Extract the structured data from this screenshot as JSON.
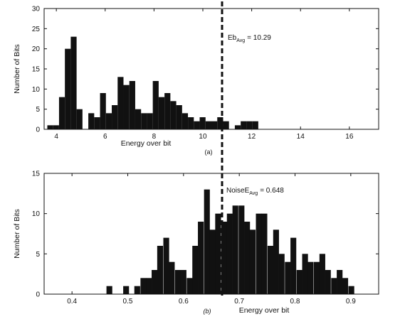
{
  "colors": {
    "bar": "#111111",
    "axis": "#111111",
    "background": "#ffffff",
    "marker_line": "#111111"
  },
  "chart_data": [
    {
      "type": "bar",
      "panel_label": "(a)",
      "title": "",
      "xlabel": "Energy over bit",
      "ylabel": "Number of Bits",
      "xlim": [
        3.5,
        17.2
      ],
      "ylim": [
        0,
        30
      ],
      "xticks": [
        4,
        6,
        8,
        10,
        12,
        14,
        16
      ],
      "yticks": [
        0,
        5,
        10,
        15,
        20,
        25,
        30
      ],
      "grid": false,
      "bin_width": 0.24,
      "bins": [
        {
          "x": 3.75,
          "y": 1
        },
        {
          "x": 3.99,
          "y": 1
        },
        {
          "x": 4.23,
          "y": 8
        },
        {
          "x": 4.47,
          "y": 20
        },
        {
          "x": 4.71,
          "y": 23
        },
        {
          "x": 4.95,
          "y": 5
        },
        {
          "x": 5.43,
          "y": 4
        },
        {
          "x": 5.67,
          "y": 3
        },
        {
          "x": 5.91,
          "y": 9
        },
        {
          "x": 6.15,
          "y": 4
        },
        {
          "x": 6.39,
          "y": 6
        },
        {
          "x": 6.63,
          "y": 13
        },
        {
          "x": 6.87,
          "y": 11
        },
        {
          "x": 7.11,
          "y": 12
        },
        {
          "x": 7.35,
          "y": 5
        },
        {
          "x": 7.59,
          "y": 4
        },
        {
          "x": 7.83,
          "y": 4
        },
        {
          "x": 8.07,
          "y": 12
        },
        {
          "x": 8.31,
          "y": 8
        },
        {
          "x": 8.55,
          "y": 9
        },
        {
          "x": 8.79,
          "y": 7
        },
        {
          "x": 9.03,
          "y": 6
        },
        {
          "x": 9.27,
          "y": 4
        },
        {
          "x": 9.51,
          "y": 3
        },
        {
          "x": 9.75,
          "y": 2
        },
        {
          "x": 9.99,
          "y": 3
        },
        {
          "x": 10.23,
          "y": 2
        },
        {
          "x": 10.47,
          "y": 2
        },
        {
          "x": 10.71,
          "y": 3
        },
        {
          "x": 10.95,
          "y": 2
        },
        {
          "x": 11.43,
          "y": 1
        },
        {
          "x": 11.67,
          "y": 2
        },
        {
          "x": 11.91,
          "y": 2
        },
        {
          "x": 12.15,
          "y": 2
        }
      ],
      "marker": {
        "x": 10.29,
        "label": "Eb",
        "sub": "Avg",
        "value_text": "= 10.29"
      }
    },
    {
      "type": "bar",
      "panel_label": "(b)",
      "title": "",
      "xlabel": "Energy over bit",
      "ylabel": "Number of Bits",
      "xlim": [
        0.35,
        0.95
      ],
      "ylim": [
        0,
        15
      ],
      "xticks": [
        0.4,
        0.5,
        0.6,
        0.7,
        0.8,
        0.9
      ],
      "yticks": [
        0,
        5,
        10,
        15
      ],
      "grid": false,
      "bin_width": 0.0104,
      "bins": [
        {
          "x": 0.467,
          "y": 1
        },
        {
          "x": 0.497,
          "y": 1
        },
        {
          "x": 0.517,
          "y": 1
        },
        {
          "x": 0.528,
          "y": 2
        },
        {
          "x": 0.538,
          "y": 2
        },
        {
          "x": 0.548,
          "y": 3
        },
        {
          "x": 0.558,
          "y": 6
        },
        {
          "x": 0.569,
          "y": 7
        },
        {
          "x": 0.579,
          "y": 4
        },
        {
          "x": 0.59,
          "y": 3
        },
        {
          "x": 0.6,
          "y": 3
        },
        {
          "x": 0.611,
          "y": 2
        },
        {
          "x": 0.621,
          "y": 6
        },
        {
          "x": 0.631,
          "y": 9
        },
        {
          "x": 0.642,
          "y": 13
        },
        {
          "x": 0.652,
          "y": 8
        },
        {
          "x": 0.662,
          "y": 10
        },
        {
          "x": 0.673,
          "y": 9
        },
        {
          "x": 0.683,
          "y": 10
        },
        {
          "x": 0.693,
          "y": 11
        },
        {
          "x": 0.704,
          "y": 11
        },
        {
          "x": 0.714,
          "y": 9
        },
        {
          "x": 0.724,
          "y": 8
        },
        {
          "x": 0.735,
          "y": 10
        },
        {
          "x": 0.745,
          "y": 10
        },
        {
          "x": 0.756,
          "y": 6
        },
        {
          "x": 0.766,
          "y": 8
        },
        {
          "x": 0.776,
          "y": 5
        },
        {
          "x": 0.787,
          "y": 4
        },
        {
          "x": 0.797,
          "y": 7
        },
        {
          "x": 0.808,
          "y": 3
        },
        {
          "x": 0.818,
          "y": 5
        },
        {
          "x": 0.828,
          "y": 4
        },
        {
          "x": 0.839,
          "y": 4
        },
        {
          "x": 0.849,
          "y": 5
        },
        {
          "x": 0.859,
          "y": 3
        },
        {
          "x": 0.87,
          "y": 2
        },
        {
          "x": 0.88,
          "y": 3
        },
        {
          "x": 0.89,
          "y": 2
        },
        {
          "x": 0.901,
          "y": 1
        }
      ],
      "marker": {
        "x": 0.648,
        "label": "NoiseE",
        "sub": "Avg",
        "value_text": "= 0.648"
      }
    }
  ]
}
